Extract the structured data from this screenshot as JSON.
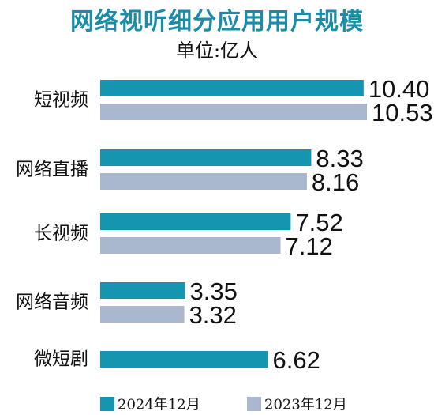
{
  "title": "网络视听细分应用用户规模",
  "subtitle": "单位:亿人",
  "colors": {
    "accent": "#1a8ca8",
    "series_2024": "#1695b0",
    "series_2023": "#a9b7cf"
  },
  "chart_data": {
    "type": "bar",
    "orientation": "horizontal",
    "title": "网络视听细分应用用户规模",
    "subtitle": "单位:亿人",
    "categories": [
      "短视频",
      "网络直播",
      "长视频",
      "网络音频",
      "微短剧"
    ],
    "series": [
      {
        "name": "2024年12月",
        "values": [
          10.4,
          8.33,
          7.52,
          3.35,
          6.62
        ]
      },
      {
        "name": "2023年12月",
        "values": [
          10.53,
          8.16,
          7.12,
          3.32,
          null
        ]
      }
    ],
    "value_labels": [
      [
        "10.40",
        "8.33",
        "7.52",
        "3.35",
        "6.62"
      ],
      [
        "10.53",
        "8.16",
        "7.12",
        "3.32",
        ""
      ]
    ],
    "xlim": [
      0,
      10.53
    ],
    "grid": false,
    "legend_position": "bottom"
  }
}
